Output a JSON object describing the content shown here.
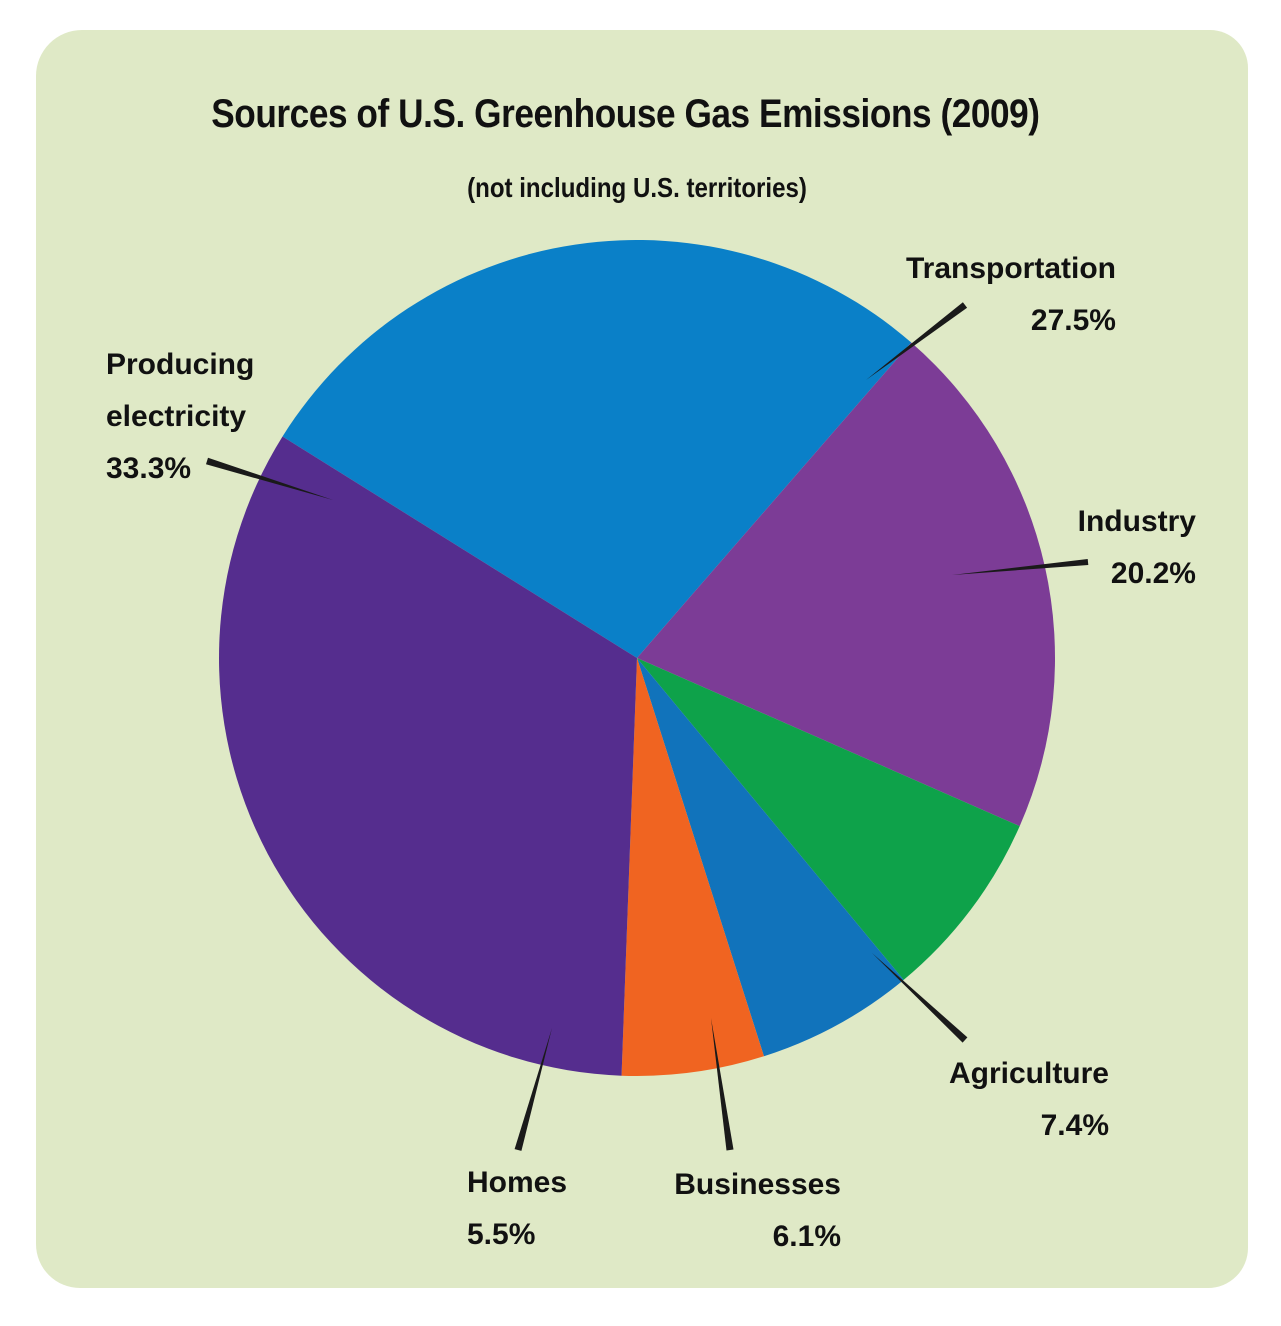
{
  "chart_data": {
    "type": "pie",
    "title": "Sources of U.S. Greenhouse Gas Emissions (2009)",
    "subtitle": "(not including  U.S. territories)",
    "slices": [
      {
        "label": "Producing electricity",
        "label_lines": [
          "Producing",
          "electricity"
        ],
        "value_label": "33.3%",
        "value": 33.3,
        "color": "#552d8e"
      },
      {
        "label": "Transportation",
        "label_lines": [
          "Transportation"
        ],
        "value_label": "27.5%",
        "value": 27.5,
        "color": "#0a80c8"
      },
      {
        "label": "Industry",
        "label_lines": [
          "Industry"
        ],
        "value_label": "20.2%",
        "value": 20.2,
        "color": "#7c3c96"
      },
      {
        "label": "Agriculture",
        "label_lines": [
          "Agriculture"
        ],
        "value_label": "7.4%",
        "value": 7.4,
        "color": "#0ea24a"
      },
      {
        "label": "Businesses",
        "label_lines": [
          "Businesses"
        ],
        "value_label": "6.1%",
        "value": 6.1,
        "color": "#1173bb"
      },
      {
        "label": "Homes",
        "label_lines": [
          "Homes"
        ],
        "value_label": "5.5%",
        "value": 5.5,
        "color": "#f06421"
      }
    ],
    "legend": "none",
    "background_color": "#dfe9c6"
  }
}
